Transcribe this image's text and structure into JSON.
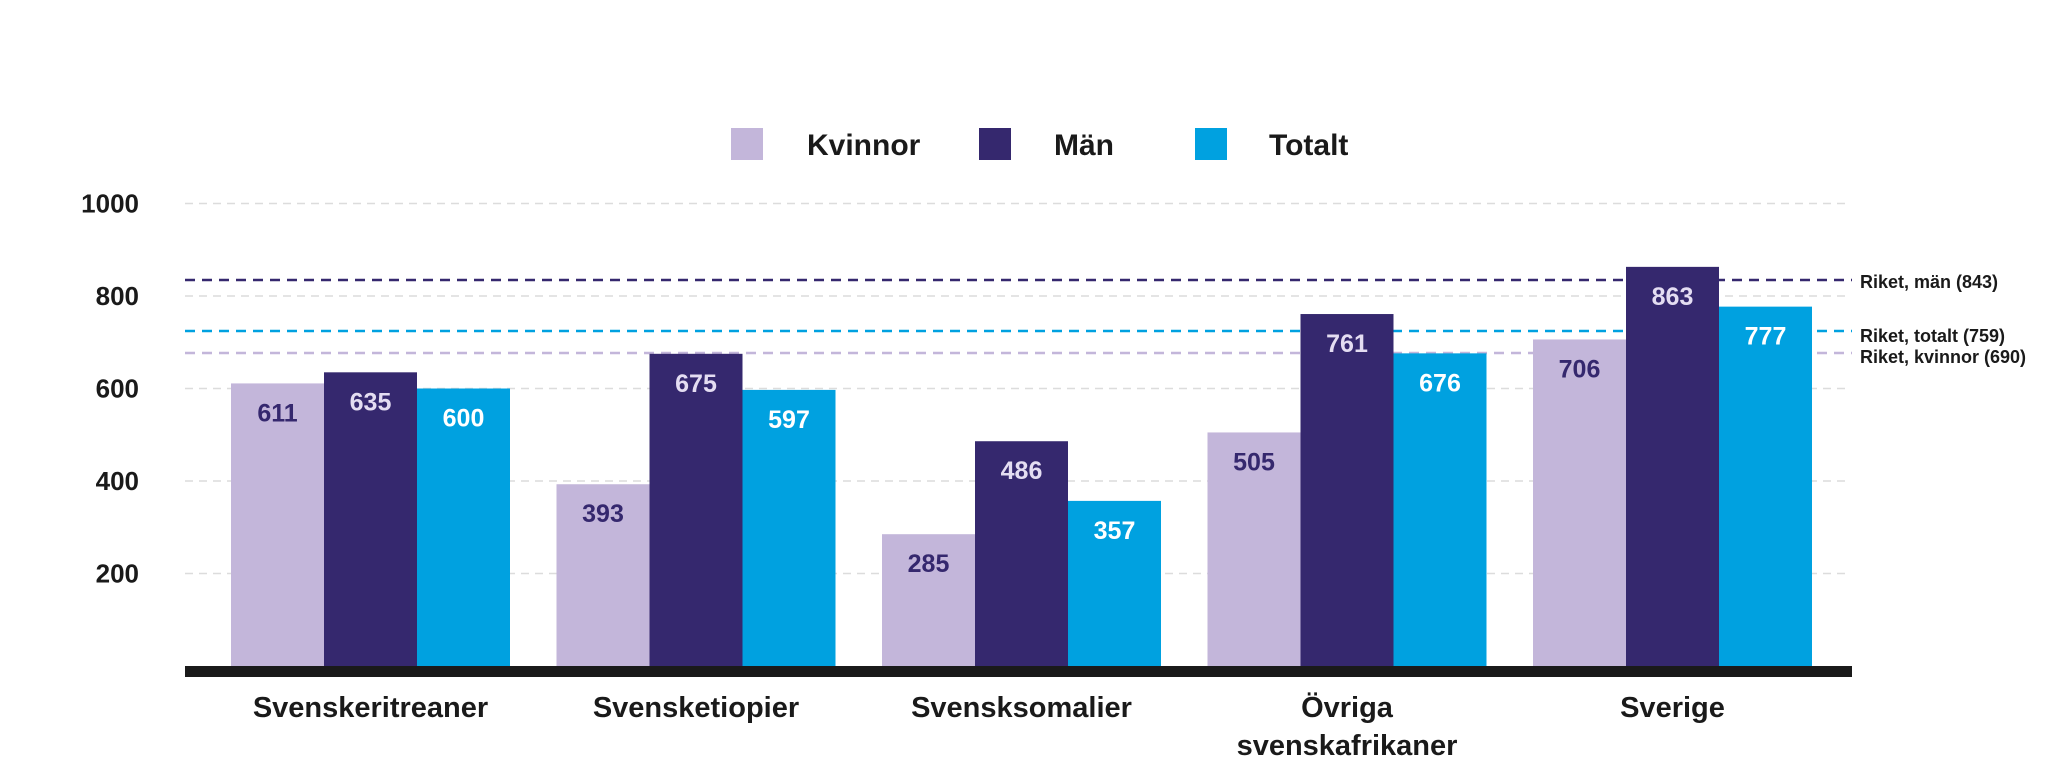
{
  "chart_data": {
    "type": "bar",
    "categories": [
      [
        "Svenskeritreaner"
      ],
      [
        "Svensketiopier"
      ],
      [
        "Svensksomalier"
      ],
      [
        "Övriga",
        "svenskafrikaner"
      ],
      [
        "Sverige"
      ]
    ],
    "series": [
      {
        "name": "Kvinnor",
        "values": [
          611,
          393,
          285,
          505,
          706
        ]
      },
      {
        "name": "Män",
        "values": [
          635,
          675,
          486,
          761,
          863
        ]
      },
      {
        "name": "Totalt",
        "values": [
          600,
          597,
          357,
          676,
          777
        ]
      }
    ],
    "y_ticks": [
      "200",
      "400",
      "600",
      "800",
      "1000"
    ],
    "ylim": [
      0,
      1000
    ],
    "reference_lines": [
      {
        "label": "Riket, män (843)",
        "value": 843,
        "series": 1
      },
      {
        "label": "Riket, totalt (759)",
        "value": 759,
        "series": 2
      },
      {
        "label": "Riket, kvinnor (690)",
        "value": 690,
        "series": 0
      }
    ],
    "grid": true,
    "legend_position": "top-center",
    "colors": {
      "Kvinnor": "#c3b6da",
      "Män": "#35286e",
      "Totalt": "#00a1e0",
      "baseline": "#1a1a1a",
      "grid": "#dcdcdc",
      "label_on_light": "#35286e",
      "label_on_dark": "#ffffff",
      "label_on_man": "#e4ddf2"
    }
  }
}
